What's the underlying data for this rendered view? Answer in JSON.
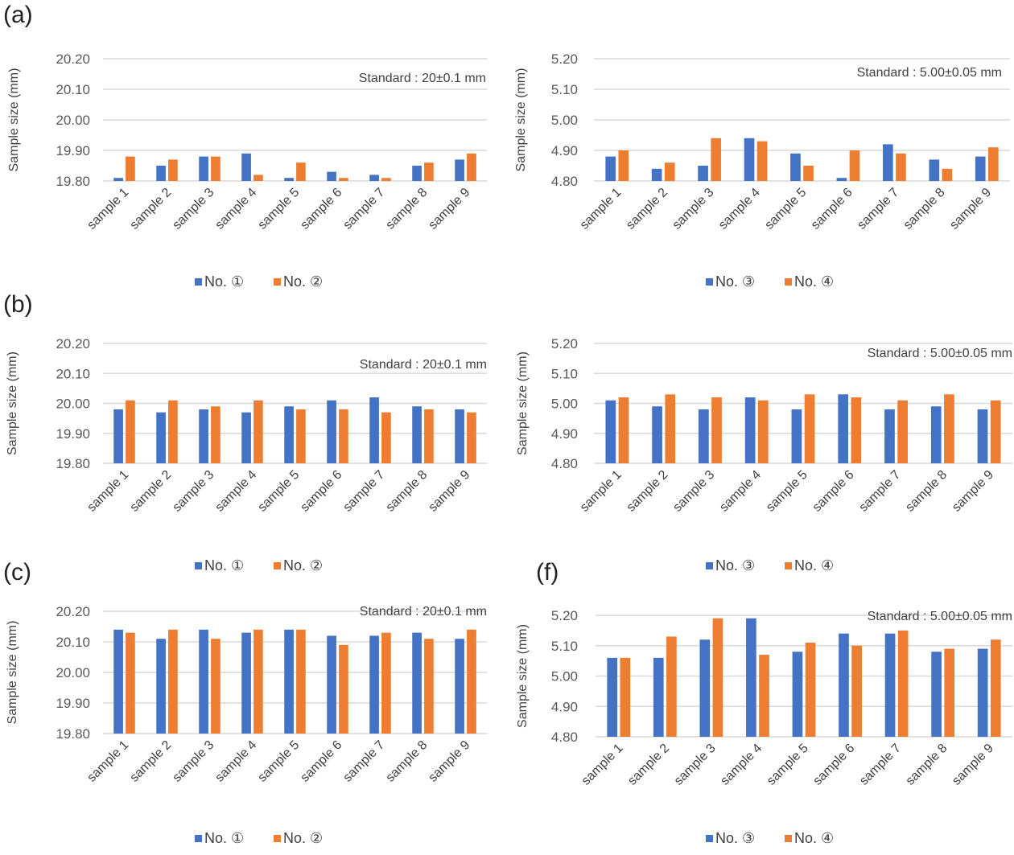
{
  "colors": {
    "series1": "#4472C4",
    "series2": "#ED7D31",
    "grid": "#D9D9D9"
  },
  "chart_data": [
    {
      "id": "a",
      "panel_label": "(a)",
      "type": "bar",
      "title": "",
      "annotation": "Standard : 20±0.1 mm",
      "xlabel": "",
      "ylabel": "Sample size (mm)",
      "ylim": [
        19.8,
        20.2
      ],
      "yticks": [
        "20.20",
        "20.10",
        "20.00",
        "19.90",
        "19.80"
      ],
      "grid": true,
      "legend": "bottom",
      "categories": [
        "sample 1",
        "sample 2",
        "sample 3",
        "sample 4",
        "sample 5",
        "sample 6",
        "sample 7",
        "sample 8",
        "sample 9"
      ],
      "series": [
        {
          "name": "No. ①",
          "values": [
            19.81,
            19.85,
            19.88,
            19.89,
            19.81,
            19.83,
            19.82,
            19.85,
            19.87
          ]
        },
        {
          "name": "No. ②",
          "values": [
            19.88,
            19.87,
            19.88,
            19.82,
            19.86,
            19.81,
            19.81,
            19.86,
            19.89
          ]
        }
      ]
    },
    {
      "id": "d",
      "panel_label": "",
      "type": "bar",
      "title": "",
      "annotation": "Standard : 5.00±0.05 mm",
      "xlabel": "",
      "ylabel": "Sample size (mm)",
      "ylim": [
        4.8,
        5.2
      ],
      "yticks": [
        "5.20",
        "5.10",
        "5.00",
        "4.90",
        "4.80"
      ],
      "grid": true,
      "legend": "bottom",
      "categories": [
        "sample 1",
        "sample 2",
        "sample 3",
        "sample 4",
        "sample 5",
        "sample 6",
        "sample 7",
        "sample 8",
        "sample 9"
      ],
      "series": [
        {
          "name": "No. ③",
          "values": [
            4.88,
            4.84,
            4.85,
            4.94,
            4.89,
            4.81,
            4.92,
            4.87,
            4.88
          ]
        },
        {
          "name": "No. ④",
          "values": [
            4.9,
            4.86,
            4.94,
            4.93,
            4.85,
            4.9,
            4.89,
            4.84,
            4.91
          ]
        }
      ]
    },
    {
      "id": "b",
      "panel_label": "(b)",
      "type": "bar",
      "title": "",
      "annotation": "Standard : 20±0.1 mm",
      "xlabel": "",
      "ylabel": "Sample size (mm)",
      "ylim": [
        19.8,
        20.2
      ],
      "yticks": [
        "20.20",
        "20.10",
        "20.00",
        "19.90",
        "19.80"
      ],
      "grid": true,
      "legend": "bottom",
      "categories": [
        "sample 1",
        "sample 2",
        "sample 3",
        "sample 4",
        "sample 5",
        "sample 6",
        "sample 7",
        "sample 8",
        "sample 9"
      ],
      "series": [
        {
          "name": "No. ①",
          "values": [
            19.98,
            19.97,
            19.98,
            19.97,
            19.99,
            20.01,
            20.02,
            19.99,
            19.98
          ]
        },
        {
          "name": "No. ②",
          "values": [
            20.01,
            20.01,
            19.99,
            20.01,
            19.98,
            19.98,
            19.97,
            19.98,
            19.97
          ]
        }
      ]
    },
    {
      "id": "e",
      "panel_label": "",
      "type": "bar",
      "title": "",
      "annotation": "Standard : 5.00±0.05 mm",
      "xlabel": "",
      "ylabel": "Sample size (mm)",
      "ylim": [
        4.8,
        5.2
      ],
      "yticks": [
        "5.20",
        "5.10",
        "5.00",
        "4.90",
        "4.80"
      ],
      "grid": true,
      "legend": "bottom",
      "categories": [
        "sample 1",
        "sample 2",
        "sample 3",
        "sample 4",
        "sample 5",
        "sample 6",
        "sample 7",
        "sample 8",
        "sample 9"
      ],
      "series": [
        {
          "name": "No. ③",
          "values": [
            5.01,
            4.99,
            4.98,
            5.02,
            4.98,
            5.03,
            4.98,
            4.99,
            4.98
          ]
        },
        {
          "name": "No. ④",
          "values": [
            5.02,
            5.03,
            5.02,
            5.01,
            5.03,
            5.02,
            5.01,
            5.03,
            5.01
          ]
        }
      ]
    },
    {
      "id": "c",
      "panel_label": "(c)",
      "type": "bar",
      "title": "",
      "annotation": "Standard : 20±0.1 mm",
      "xlabel": "",
      "ylabel": "Sample size (mm)",
      "ylim": [
        19.8,
        20.2
      ],
      "yticks": [
        "20.20",
        "20.10",
        "20.00",
        "19.90",
        "19.80"
      ],
      "grid": true,
      "legend": "bottom",
      "categories": [
        "sample 1",
        "sample 2",
        "sample 3",
        "sample 4",
        "sample 5",
        "sample 6",
        "sample 7",
        "sample 8",
        "sample 9"
      ],
      "series": [
        {
          "name": "No. ①",
          "values": [
            20.14,
            20.11,
            20.14,
            20.13,
            20.14,
            20.12,
            20.12,
            20.13,
            20.11
          ]
        },
        {
          "name": "No. ②",
          "values": [
            20.13,
            20.14,
            20.11,
            20.14,
            20.14,
            20.09,
            20.13,
            20.11,
            20.14
          ]
        }
      ]
    },
    {
      "id": "f",
      "panel_label": "(f)",
      "type": "bar",
      "title": "",
      "annotation": "Standard : 5.00±0.05 mm",
      "xlabel": "",
      "ylabel": "Sample size (mm)",
      "ylim": [
        4.8,
        5.2
      ],
      "yticks": [
        "5.20",
        "5.10",
        "5.00",
        "4.90",
        "4.80"
      ],
      "grid": true,
      "legend": "bottom",
      "categories": [
        "sample 1",
        "sample 2",
        "sample 3",
        "sample 4",
        "sample 5",
        "sample 6",
        "sample 7",
        "sample 8",
        "sample 9"
      ],
      "series": [
        {
          "name": "No. ③",
          "values": [
            5.06,
            5.06,
            5.12,
            5.19,
            5.08,
            5.14,
            5.14,
            5.08,
            5.09
          ]
        },
        {
          "name": "No. ④",
          "values": [
            5.06,
            5.13,
            5.19,
            5.07,
            5.11,
            5.1,
            5.15,
            5.09,
            5.12
          ]
        }
      ]
    }
  ]
}
